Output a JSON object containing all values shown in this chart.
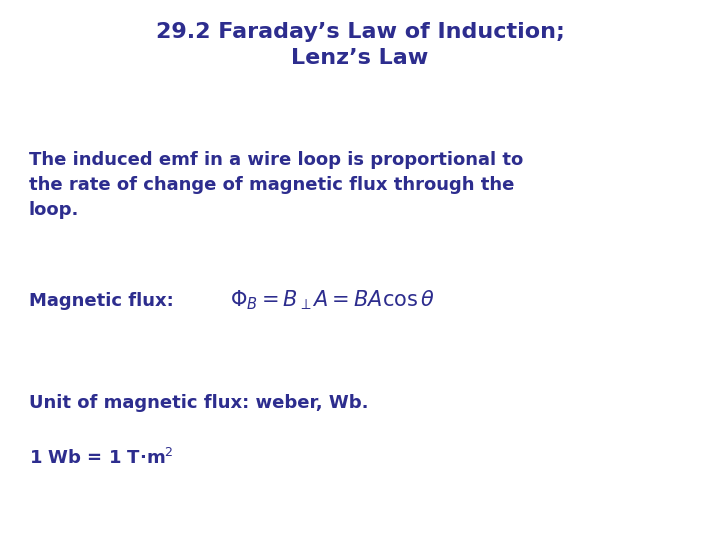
{
  "title_line1": "29.2 Faraday’s Law of Induction;",
  "title_line2": "Lenz’s Law",
  "text_color": "#2d2d8e",
  "title_fontsize": 16,
  "body_fontsize": 13,
  "formula_fontsize": 15,
  "text1": "The induced emf in a wire loop is proportional to\nthe rate of change of magnetic flux through the\nloop.",
  "text2_label": "Magnetic flux:   ",
  "formula": "$\\Phi_B = B_{\\perp}A = BA\\cos\\theta$",
  "text3": "Unit of magnetic flux: weber, Wb.",
  "text4": "1 Wb = 1 T·m$^2$",
  "background_color": "#ffffff",
  "fig_width": 7.2,
  "fig_height": 5.4,
  "dpi": 100
}
